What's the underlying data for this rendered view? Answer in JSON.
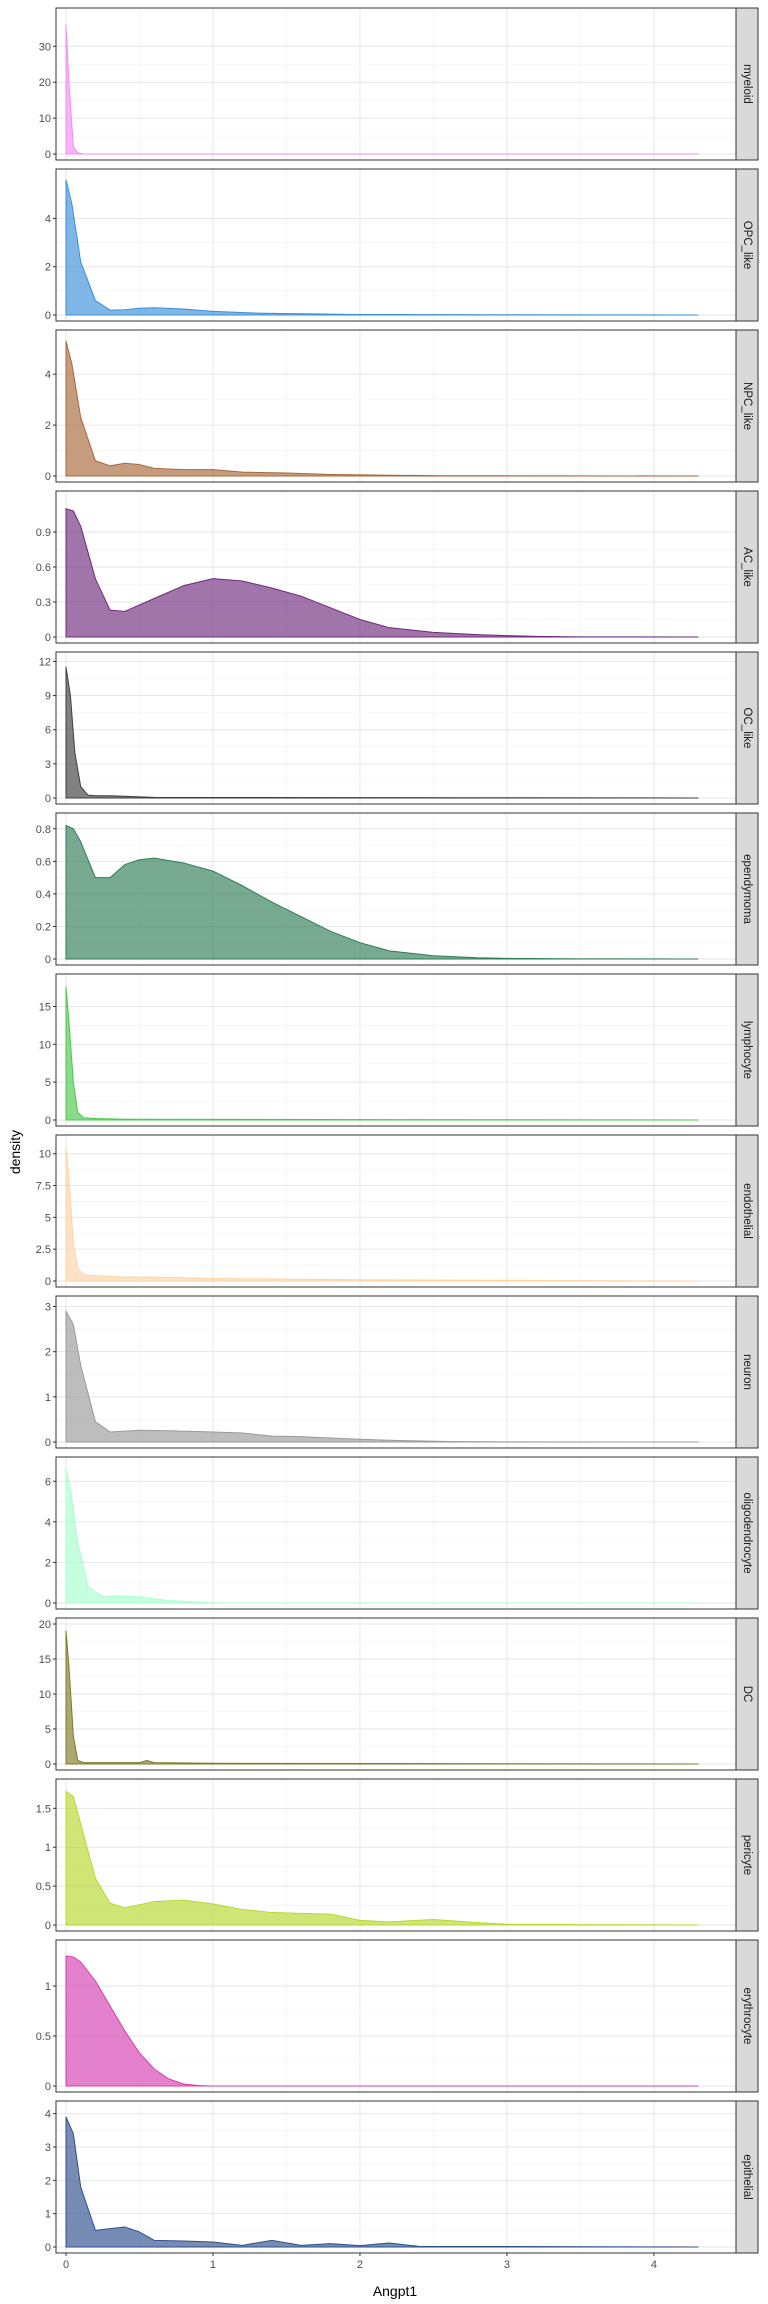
{
  "chart_data": {
    "type": "area",
    "xlabel": "Angpt1",
    "ylabel": "density",
    "xlim": [
      0,
      4.3
    ],
    "x_ticks": [
      0,
      1,
      2,
      3,
      4
    ],
    "grid": true,
    "legend": "none",
    "panels": [
      {
        "label": "myeloid",
        "color": "#F58CF5",
        "ylim": [
          0,
          39
        ],
        "y_ticks": [
          0,
          10,
          20,
          30
        ],
        "x": [
          0,
          0.02,
          0.05,
          0.08,
          0.12,
          4.3
        ],
        "y": [
          36,
          20,
          2,
          0.3,
          0,
          0
        ]
      },
      {
        "label": "OPC_like",
        "color": "#3A8FD9",
        "ylim": [
          0,
          5.8
        ],
        "y_ticks": [
          0,
          2,
          4
        ],
        "x": [
          0,
          0.04,
          0.1,
          0.2,
          0.3,
          0.4,
          0.5,
          0.6,
          0.8,
          1.0,
          1.3,
          1.6,
          2.0,
          4.3
        ],
        "y": [
          5.6,
          4.6,
          2.2,
          0.6,
          0.2,
          0.22,
          0.28,
          0.3,
          0.25,
          0.15,
          0.08,
          0.05,
          0.02,
          0
        ]
      },
      {
        "label": "NPC_like",
        "color": "#A8673B",
        "ylim": [
          0,
          5.5
        ],
        "y_ticks": [
          0,
          2,
          4
        ],
        "x": [
          0,
          0.04,
          0.1,
          0.2,
          0.3,
          0.4,
          0.5,
          0.6,
          0.8,
          1.0,
          1.2,
          1.5,
          1.8,
          2.2,
          2.6,
          4.3
        ],
        "y": [
          5.3,
          4.4,
          2.3,
          0.6,
          0.4,
          0.5,
          0.45,
          0.3,
          0.25,
          0.25,
          0.15,
          0.12,
          0.06,
          0.03,
          0.01,
          0
        ]
      },
      {
        "label": "AC_like",
        "color": "#6E2A7C",
        "ylim": [
          0,
          1.2
        ],
        "y_ticks": [
          0,
          0.3,
          0.6,
          0.9
        ],
        "x": [
          0,
          0.05,
          0.1,
          0.2,
          0.3,
          0.4,
          0.6,
          0.8,
          1.0,
          1.2,
          1.4,
          1.6,
          1.8,
          2.0,
          2.2,
          2.5,
          2.8,
          3.0,
          3.2,
          3.5,
          4.3
        ],
        "y": [
          1.1,
          1.08,
          0.95,
          0.5,
          0.23,
          0.22,
          0.33,
          0.44,
          0.5,
          0.48,
          0.42,
          0.35,
          0.25,
          0.15,
          0.08,
          0.04,
          0.02,
          0.012,
          0.005,
          0.001,
          0
        ]
      },
      {
        "label": "OC_like",
        "color": "#3D3D3D",
        "ylim": [
          0,
          12.3
        ],
        "y_ticks": [
          0,
          3,
          6,
          9,
          12
        ],
        "x": [
          0,
          0.03,
          0.06,
          0.1,
          0.15,
          0.2,
          0.3,
          0.5,
          0.6,
          4.3
        ],
        "y": [
          11.5,
          9,
          4,
          1,
          0.25,
          0.2,
          0.2,
          0.1,
          0.05,
          0
        ]
      },
      {
        "label": "ependymoma",
        "color": "#2E7D56",
        "ylim": [
          0,
          0.86
        ],
        "y_ticks": [
          0,
          0.2,
          0.4,
          0.6,
          0.8
        ],
        "x": [
          0,
          0.05,
          0.1,
          0.2,
          0.3,
          0.4,
          0.5,
          0.6,
          0.8,
          1.0,
          1.2,
          1.4,
          1.6,
          1.8,
          2.0,
          2.2,
          2.5,
          2.8,
          3.0,
          3.5,
          4.3
        ],
        "y": [
          0.82,
          0.8,
          0.72,
          0.5,
          0.5,
          0.58,
          0.61,
          0.62,
          0.59,
          0.54,
          0.45,
          0.35,
          0.26,
          0.17,
          0.1,
          0.05,
          0.02,
          0.008,
          0.004,
          0.001,
          0
        ]
      },
      {
        "label": "lymphocyte",
        "color": "#4CC84C",
        "ylim": [
          0,
          18.5
        ],
        "y_ticks": [
          0,
          5,
          10,
          15
        ],
        "x": [
          0,
          0.02,
          0.05,
          0.08,
          0.12,
          0.2,
          0.4,
          4.3
        ],
        "y": [
          17.6,
          13,
          5,
          1,
          0.3,
          0.2,
          0.1,
          0
        ]
      },
      {
        "label": "endothelial",
        "color": "#FFD3A6",
        "ylim": [
          0,
          11
        ],
        "y_ticks": [
          0,
          2.5,
          5,
          7.5,
          10
        ],
        "x": [
          0,
          0.02,
          0.05,
          0.08,
          0.12,
          0.2,
          0.4,
          0.6,
          1.0,
          1.5,
          2.0,
          3.0,
          4.3
        ],
        "y": [
          10.4,
          8,
          3,
          1,
          0.5,
          0.4,
          0.3,
          0.3,
          0.2,
          0.15,
          0.1,
          0.05,
          0
        ]
      },
      {
        "label": "neuron",
        "color": "#9A9A9A",
        "ylim": [
          0,
          3.1
        ],
        "y_ticks": [
          0,
          1,
          2,
          3
        ],
        "x": [
          0,
          0.05,
          0.1,
          0.2,
          0.3,
          0.4,
          0.5,
          0.7,
          1.0,
          1.2,
          1.4,
          1.6,
          1.8,
          2.0,
          2.3,
          2.6,
          3.0,
          4.3
        ],
        "y": [
          2.9,
          2.6,
          1.7,
          0.45,
          0.22,
          0.24,
          0.26,
          0.25,
          0.22,
          0.2,
          0.13,
          0.12,
          0.09,
          0.06,
          0.03,
          0.01,
          0.003,
          0
        ]
      },
      {
        "label": "oligodendrocyte",
        "color": "#A8FFCC",
        "ylim": [
          0,
          6.9
        ],
        "y_ticks": [
          0,
          2,
          4,
          6
        ],
        "x": [
          0,
          0.03,
          0.08,
          0.15,
          0.25,
          0.35,
          0.5,
          0.7,
          0.9,
          1.0,
          4.3
        ],
        "y": [
          6.6,
          5.6,
          3,
          0.8,
          0.3,
          0.35,
          0.3,
          0.12,
          0.05,
          0,
          0
        ]
      },
      {
        "label": "DC",
        "color": "#7F7A26",
        "ylim": [
          0,
          20
        ],
        "y_ticks": [
          0,
          5,
          10,
          15,
          20
        ],
        "x": [
          0,
          0.02,
          0.05,
          0.08,
          0.12,
          0.3,
          0.5,
          0.55,
          0.6,
          1.0,
          4.3
        ],
        "y": [
          19,
          14,
          4,
          0.5,
          0.2,
          0.2,
          0.2,
          0.5,
          0.2,
          0.1,
          0
        ]
      },
      {
        "label": "pericyte",
        "color": "#B5D92E",
        "ylim": [
          0,
          1.8
        ],
        "y_ticks": [
          0,
          0.5,
          1,
          1.5
        ],
        "x": [
          0,
          0.05,
          0.1,
          0.2,
          0.3,
          0.4,
          0.6,
          0.8,
          1.0,
          1.2,
          1.4,
          1.6,
          1.8,
          2.0,
          2.2,
          2.5,
          2.8,
          3.0,
          3.5,
          4.3
        ],
        "y": [
          1.72,
          1.65,
          1.3,
          0.6,
          0.28,
          0.22,
          0.3,
          0.32,
          0.27,
          0.2,
          0.16,
          0.15,
          0.14,
          0.06,
          0.04,
          0.07,
          0.03,
          0.01,
          0.005,
          0
        ]
      },
      {
        "label": "erythrocyte",
        "color": "#D63DB0",
        "ylim": [
          0,
          1.4
        ],
        "y_ticks": [
          0,
          0.5,
          1
        ],
        "x": [
          0,
          0.05,
          0.1,
          0.2,
          0.3,
          0.4,
          0.5,
          0.6,
          0.7,
          0.8,
          0.9,
          1.0,
          4.3
        ],
        "y": [
          1.3,
          1.29,
          1.24,
          1.05,
          0.8,
          0.55,
          0.33,
          0.17,
          0.07,
          0.02,
          0.005,
          0,
          0
        ]
      },
      {
        "label": "epithelial",
        "color": "#2E4F8C",
        "ylim": [
          0,
          4.2
        ],
        "y_ticks": [
          0,
          1,
          2,
          3,
          4
        ],
        "x": [
          0,
          0.05,
          0.1,
          0.2,
          0.3,
          0.4,
          0.5,
          0.6,
          0.8,
          1.0,
          1.2,
          1.4,
          1.6,
          1.8,
          2.0,
          2.2,
          2.4,
          4.3
        ],
        "y": [
          3.9,
          3.4,
          1.8,
          0.5,
          0.55,
          0.6,
          0.45,
          0.2,
          0.18,
          0.15,
          0.05,
          0.2,
          0.05,
          0.1,
          0.04,
          0.12,
          0.02,
          0
        ]
      }
    ]
  }
}
